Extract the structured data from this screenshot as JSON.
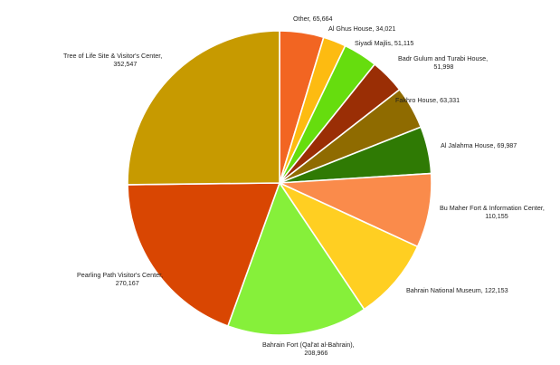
{
  "chart_data": {
    "type": "pie",
    "title": "",
    "slices": [
      {
        "label": "Other",
        "value": 65664,
        "value_text": "65,664",
        "color": "#F26522",
        "label_lines": [
          "Other,  65,664"
        ]
      },
      {
        "label": "Al Ghus House",
        "value": 34021,
        "value_text": "34,021",
        "color": "#FDBB11",
        "label_lines": [
          "Al Ghus House,  34,021"
        ]
      },
      {
        "label": "Siyadi Majlis",
        "value": 51115,
        "value_text": "51,115",
        "color": "#66DD0E",
        "label_lines": [
          "Siyadi Majlis,  51,115"
        ]
      },
      {
        "label": "Badr Gulum and Turabi House",
        "value": 51998,
        "value_text": "51,998",
        "color": "#9A2E05",
        "label_lines": [
          "Badr Gulum and Turabi House,",
          "51,998"
        ]
      },
      {
        "label": "Fakhro House",
        "value": 63331,
        "value_text": "63,331",
        "color": "#8F6B00",
        "label_lines": [
          "Fakhro House,  63,331"
        ]
      },
      {
        "label": "Al Jalahma House",
        "value": 69987,
        "value_text": "69,987",
        "color": "#2F7A04",
        "label_lines": [
          "Al Jalahma House,  69,987"
        ]
      },
      {
        "label": "Bu Maher Fort & Information Center",
        "value": 110155,
        "value_text": "110,155",
        "color": "#FA8B4B",
        "label_lines": [
          "Bu Maher Fort & Information Center,",
          "110,155"
        ]
      },
      {
        "label": "Bahrain National Museum",
        "value": 122153,
        "value_text": "122,153",
        "color": "#FFCF22",
        "label_lines": [
          "Bahrain National Museum,  122,153"
        ]
      },
      {
        "label": "Bahrain Fort (Qal'at al-Bahrain)",
        "value": 208966,
        "value_text": "208,966",
        "color": "#86F03A",
        "label_lines": [
          "Bahrain Fort (Qal'at al-Bahrain),",
          "208,966"
        ]
      },
      {
        "label": "Pearling Path Visitor's Center",
        "value": 270167,
        "value_text": "270,167",
        "color": "#D94602",
        "label_lines": [
          "Pearling Path Visitor's Center,",
          "270,167"
        ]
      },
      {
        "label": "Tree of Life  Site & Visitor's Center",
        "value": 352547,
        "value_text": "352,547",
        "color": "#C79A00",
        "label_lines": [
          "Tree of Life  Site & Visitor's Center,",
          "352,547"
        ]
      }
    ],
    "start_angle": "12 o'clock",
    "direction": "clockwise",
    "legend": "none",
    "data_labels": "category name and value"
  }
}
